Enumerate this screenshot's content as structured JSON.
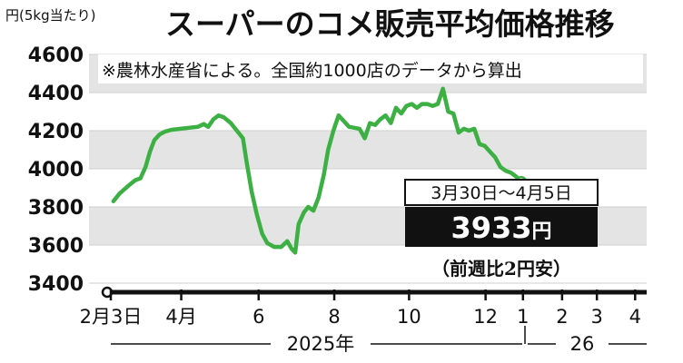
{
  "chart_data": {
    "type": "line",
    "title": "スーパーのコメ販売平均価格推移",
    "unit_label": "円(5kg当たり)",
    "note": "※農林水産省による。全国約1000店のデータから算出",
    "ylim": [
      3400,
      4600
    ],
    "yticks": [
      3400,
      3600,
      3800,
      4000,
      4200,
      4400,
      4600
    ],
    "ytick_labels": [
      "3400",
      "3600",
      "3800",
      "4000",
      "4200",
      "4400",
      "4600"
    ],
    "grid": "alternating gray bands",
    "xlim": [
      0,
      61
    ],
    "x_ticks": [
      {
        "x": 0,
        "label": "2月3日"
      },
      {
        "x": 8.1,
        "label": "4月"
      },
      {
        "x": 17,
        "label": "6"
      },
      {
        "x": 25.7,
        "label": "8"
      },
      {
        "x": 34.3,
        "label": "10"
      },
      {
        "x": 43.1,
        "label": "12"
      },
      {
        "x": 47.4,
        "label": "1"
      },
      {
        "x": 51.9,
        "label": "2"
      },
      {
        "x": 55.9,
        "label": "3"
      },
      {
        "x": 60.3,
        "label": "4"
      }
    ],
    "year_labels": [
      "2025年",
      "26"
    ],
    "series": [
      {
        "color": "#3cb043",
        "points": [
          [
            0.3,
            3830
          ],
          [
            1.0,
            3870
          ],
          [
            2.0,
            3910
          ],
          [
            2.8,
            3940
          ],
          [
            3.4,
            3950
          ],
          [
            4.0,
            4010
          ],
          [
            4.5,
            4090
          ],
          [
            5.0,
            4150
          ],
          [
            5.6,
            4180
          ],
          [
            6.2,
            4195
          ],
          [
            7.0,
            4205
          ],
          [
            8.0,
            4210
          ],
          [
            9.0,
            4215
          ],
          [
            10.0,
            4220
          ],
          [
            10.7,
            4235
          ],
          [
            11.2,
            4220
          ],
          [
            11.8,
            4260
          ],
          [
            12.4,
            4280
          ],
          [
            13.0,
            4270
          ],
          [
            13.8,
            4240
          ],
          [
            14.5,
            4200
          ],
          [
            15.2,
            4160
          ],
          [
            15.6,
            4040
          ],
          [
            16.2,
            3880
          ],
          [
            16.8,
            3760
          ],
          [
            17.4,
            3660
          ],
          [
            18.0,
            3610
          ],
          [
            18.8,
            3590
          ],
          [
            19.6,
            3590
          ],
          [
            20.3,
            3620
          ],
          [
            20.8,
            3580
          ],
          [
            21.2,
            3560
          ],
          [
            21.6,
            3710
          ],
          [
            22.2,
            3770
          ],
          [
            22.7,
            3800
          ],
          [
            23.3,
            3780
          ],
          [
            23.9,
            3850
          ],
          [
            24.5,
            3970
          ],
          [
            25.0,
            4100
          ],
          [
            25.6,
            4200
          ],
          [
            26.2,
            4280
          ],
          [
            26.8,
            4250
          ],
          [
            27.4,
            4220
          ],
          [
            28.0,
            4215
          ],
          [
            28.6,
            4210
          ],
          [
            29.2,
            4160
          ],
          [
            29.8,
            4240
          ],
          [
            30.4,
            4230
          ],
          [
            31.0,
            4260
          ],
          [
            31.6,
            4280
          ],
          [
            32.2,
            4240
          ],
          [
            32.8,
            4320
          ],
          [
            33.4,
            4290
          ],
          [
            34.0,
            4330
          ],
          [
            34.6,
            4340
          ],
          [
            35.2,
            4320
          ],
          [
            35.8,
            4340
          ],
          [
            36.4,
            4340
          ],
          [
            37.0,
            4330
          ],
          [
            37.6,
            4340
          ],
          [
            38.2,
            4420
          ],
          [
            38.8,
            4300
          ],
          [
            39.4,
            4290
          ],
          [
            40.0,
            4190
          ],
          [
            40.6,
            4210
          ],
          [
            41.2,
            4200
          ],
          [
            41.8,
            4210
          ],
          [
            42.4,
            4130
          ],
          [
            43.0,
            4120
          ],
          [
            43.6,
            4090
          ],
          [
            44.2,
            4060
          ],
          [
            44.8,
            4010
          ],
          [
            45.4,
            3990
          ],
          [
            46.0,
            3980
          ],
          [
            46.6,
            3960
          ],
          [
            47.2,
            3933
          ]
        ]
      }
    ],
    "callout": {
      "period": "3月30日～4月5日",
      "price": "3933",
      "price_unit": "円",
      "change": "（前週比2円安）"
    }
  }
}
